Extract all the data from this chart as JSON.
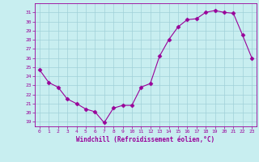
{
  "x": [
    0,
    1,
    2,
    3,
    4,
    5,
    6,
    7,
    8,
    9,
    10,
    11,
    12,
    13,
    14,
    15,
    16,
    17,
    18,
    19,
    20,
    21,
    22,
    23
  ],
  "y": [
    24.7,
    23.3,
    22.8,
    21.5,
    21.0,
    20.4,
    20.1,
    18.9,
    20.5,
    20.8,
    20.8,
    22.8,
    23.2,
    26.2,
    28.0,
    29.4,
    30.2,
    30.3,
    31.0,
    31.2,
    31.0,
    30.9,
    28.5,
    26.0
  ],
  "line_color": "#990099",
  "marker": "D",
  "marker_size": 2.5,
  "xlabel": "Windchill (Refroidissement éolien,°C)",
  "xlabel_color": "#990099",
  "ylim": [
    18.5,
    32.0
  ],
  "yticks": [
    19,
    20,
    21,
    22,
    23,
    24,
    25,
    26,
    27,
    28,
    29,
    30,
    31
  ],
  "xticks": [
    0,
    1,
    2,
    3,
    4,
    5,
    6,
    7,
    8,
    9,
    10,
    11,
    12,
    13,
    14,
    15,
    16,
    17,
    18,
    19,
    20,
    21,
    22,
    23
  ],
  "bg_color": "#c8eef0",
  "grid_color": "#a0d0d8",
  "border_color": "#888888"
}
